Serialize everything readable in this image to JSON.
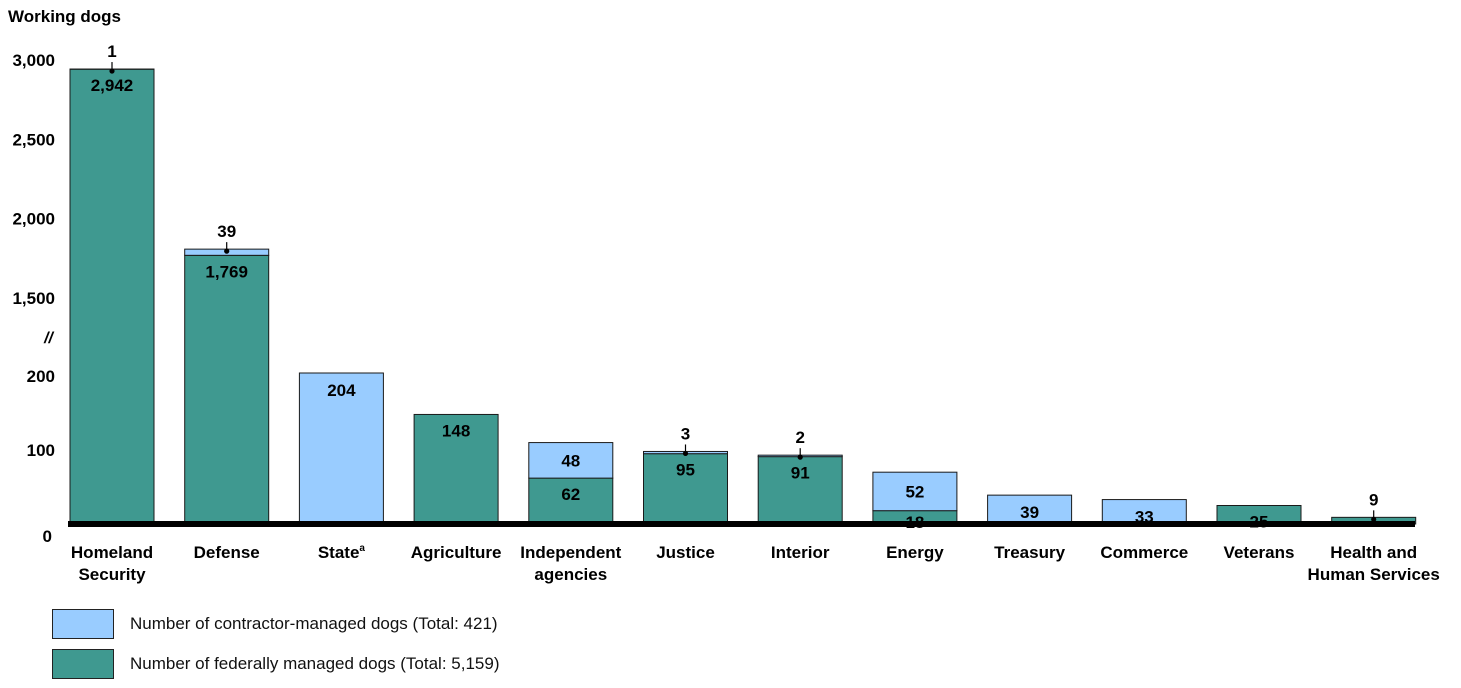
{
  "chart_data": {
    "type": "bar",
    "stacked": true,
    "ylabel": "Working dogs",
    "axis_break_marker": "//",
    "y_ticks_upper": [
      "3,000",
      "2,500",
      "2,000",
      "1,500"
    ],
    "y_ticks_lower": [
      "200",
      "100",
      "0"
    ],
    "categories": [
      {
        "label": [
          "Homeland",
          "Security"
        ],
        "sup": ""
      },
      {
        "label": [
          "Defense"
        ],
        "sup": ""
      },
      {
        "label": [
          "State"
        ],
        "sup": "a"
      },
      {
        "label": [
          "Agriculture"
        ],
        "sup": ""
      },
      {
        "label": [
          "Independent",
          "agencies"
        ],
        "sup": ""
      },
      {
        "label": [
          "Justice"
        ],
        "sup": ""
      },
      {
        "label": [
          "Interior"
        ],
        "sup": ""
      },
      {
        "label": [
          "Energy"
        ],
        "sup": ""
      },
      {
        "label": [
          "Treasury"
        ],
        "sup": ""
      },
      {
        "label": [
          "Commerce"
        ],
        "sup": ""
      },
      {
        "label": [
          "Veterans"
        ],
        "sup": ""
      },
      {
        "label": [
          "Health and",
          "Human Services"
        ],
        "sup": ""
      }
    ],
    "series": [
      {
        "name": "Number of federally managed dogs (Total: 5,159)",
        "color": "#3f9990",
        "values": [
          2942,
          1769,
          0,
          148,
          62,
          95,
          91,
          18,
          0,
          0,
          25,
          9
        ],
        "value_labels": [
          "2,942",
          "1,769",
          "",
          "148",
          "62",
          "95",
          "91",
          "18",
          "",
          "",
          "25",
          "9"
        ]
      },
      {
        "name": "Number of contractor-managed dogs (Total: 421)",
        "color": "#99ccff",
        "values": [
          1,
          39,
          204,
          0,
          48,
          3,
          2,
          52,
          39,
          33,
          0,
          0
        ],
        "value_labels": [
          "1",
          "39",
          "204",
          "",
          "48",
          "3",
          "2",
          "52",
          "39",
          "33",
          "",
          ""
        ]
      }
    ]
  },
  "legend": [
    {
      "label": "Number of contractor-managed dogs (Total: 421)",
      "color": "#99ccff"
    },
    {
      "label": "Number of federally managed dogs (Total: 5,159)",
      "color": "#3f9990"
    }
  ]
}
